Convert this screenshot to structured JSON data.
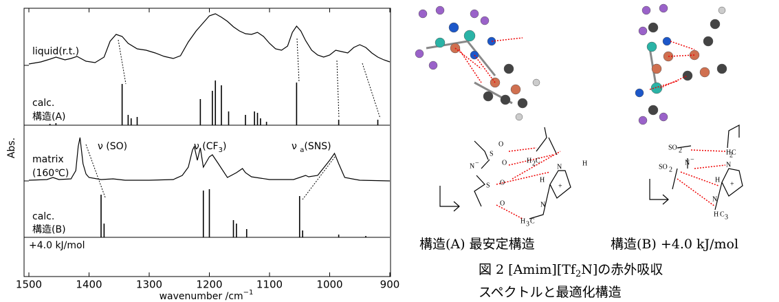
{
  "chart_data": {
    "type": "line",
    "x_label": "wavenumber /cm",
    "x_label_sup": "−1",
    "y_label": "Abs.",
    "xlim": [
      1500,
      900
    ],
    "xticks": [
      1500,
      1400,
      1300,
      1200,
      1100,
      1000,
      900
    ],
    "series": [
      {
        "name_lines": [
          "liquid(r.t.)"
        ],
        "style": "curve",
        "color": "#000000",
        "x": [
          1500,
          1480,
          1465,
          1455,
          1440,
          1430,
          1420,
          1405,
          1390,
          1375,
          1365,
          1355,
          1345,
          1335,
          1320,
          1305,
          1290,
          1275,
          1260,
          1248,
          1235,
          1222,
          1210,
          1200,
          1190,
          1180,
          1170,
          1160,
          1150,
          1140,
          1130,
          1120,
          1110,
          1100,
          1090,
          1080,
          1070,
          1062,
          1055,
          1048,
          1040,
          1030,
          1020,
          1010,
          1000,
          990,
          980,
          970,
          960,
          950,
          940,
          930,
          920,
          910,
          900
        ],
        "values": [
          2,
          5,
          9,
          12,
          8,
          10,
          13,
          6,
          4,
          12,
          35,
          45,
          42,
          32,
          24,
          22,
          18,
          13,
          10,
          14,
          34,
          50,
          62,
          72,
          75,
          70,
          64,
          56,
          50,
          46,
          45,
          48,
          42,
          32,
          24,
          22,
          28,
          48,
          57,
          50,
          36,
          22,
          15,
          12,
          15,
          22,
          20,
          18,
          26,
          30,
          26,
          18,
          12,
          8,
          5
        ]
      },
      {
        "name_lines": [
          "calc.",
          "構造(A)"
        ],
        "style": "stick",
        "color": "#000000",
        "x": [
          1465,
          1455,
          1345,
          1335,
          1330,
          1320,
          1215,
          1195,
          1190,
          1180,
          1168,
          1140,
          1125,
          1120,
          1115,
          1105,
          1055,
          985,
          920
        ],
        "values": [
          2,
          3,
          60,
          15,
          10,
          12,
          38,
          50,
          65,
          58,
          20,
          15,
          20,
          18,
          10,
          5,
          62,
          8,
          8
        ]
      },
      {
        "name_lines": [
          "matrix",
          "(160℃)"
        ],
        "style": "curve",
        "color": "#000000",
        "x": [
          1500,
          1470,
          1460,
          1450,
          1430,
          1422,
          1418,
          1415,
          1410,
          1405,
          1400,
          1380,
          1360,
          1340,
          1300,
          1260,
          1245,
          1235,
          1228,
          1225,
          1220,
          1215,
          1210,
          1200,
          1195,
          1185,
          1170,
          1155,
          1145,
          1140,
          1130,
          1100,
          1060,
          1040,
          1035,
          1020,
          1000,
          992,
          985,
          975,
          950,
          900
        ],
        "values": [
          1,
          2,
          5,
          2,
          3,
          15,
          50,
          63,
          25,
          10,
          5,
          2,
          3,
          1,
          1,
          2,
          8,
          20,
          45,
          50,
          30,
          48,
          20,
          35,
          38,
          25,
          5,
          12,
          18,
          12,
          6,
          2,
          2,
          8,
          6,
          8,
          30,
          40,
          25,
          5,
          1,
          0
        ]
      },
      {
        "name_lines": [
          "calc.",
          "構造(B)"
        ],
        "energy_label": "+4.0 kJ/mol",
        "style": "stick",
        "color": "#000000",
        "x": [
          1380,
          1375,
          1210,
          1200,
          1160,
          1155,
          1138,
          1050,
          1045,
          985,
          940
        ],
        "values": [
          62,
          20,
          68,
          70,
          25,
          20,
          12,
          60,
          10,
          4,
          2
        ]
      }
    ],
    "annotations": [
      {
        "parts": [
          "ν (SO)"
        ]
      },
      {
        "parts": [
          "ν (CF",
          "3",
          ")"
        ]
      },
      {
        "parts": [
          "ν ",
          "a",
          "(SNS)"
        ]
      }
    ]
  },
  "figure": {
    "structure_a": {
      "caption": "構造(A)  最安定構造",
      "labels": [
        "O",
        "S",
        "N",
        "−",
        "O",
        "S",
        "O",
        "O",
        "H",
        "H",
        "C",
        "H",
        "N",
        "N",
        "+",
        "H",
        "C",
        "2",
        "3"
      ]
    },
    "structure_b": {
      "caption": "構造(B) +4.0 kJ/mol",
      "labels": [
        "SO",
        "2",
        "SO",
        "2",
        "N",
        "−",
        "H",
        "C",
        "2",
        "H",
        "N",
        "N",
        "+",
        "H",
        "C",
        "3"
      ]
    },
    "figure_caption": [
      "図 2   [Amim][Tf",
      "2",
      "N]の赤外吸収",
      "スペクトルと最適化構造"
    ]
  }
}
